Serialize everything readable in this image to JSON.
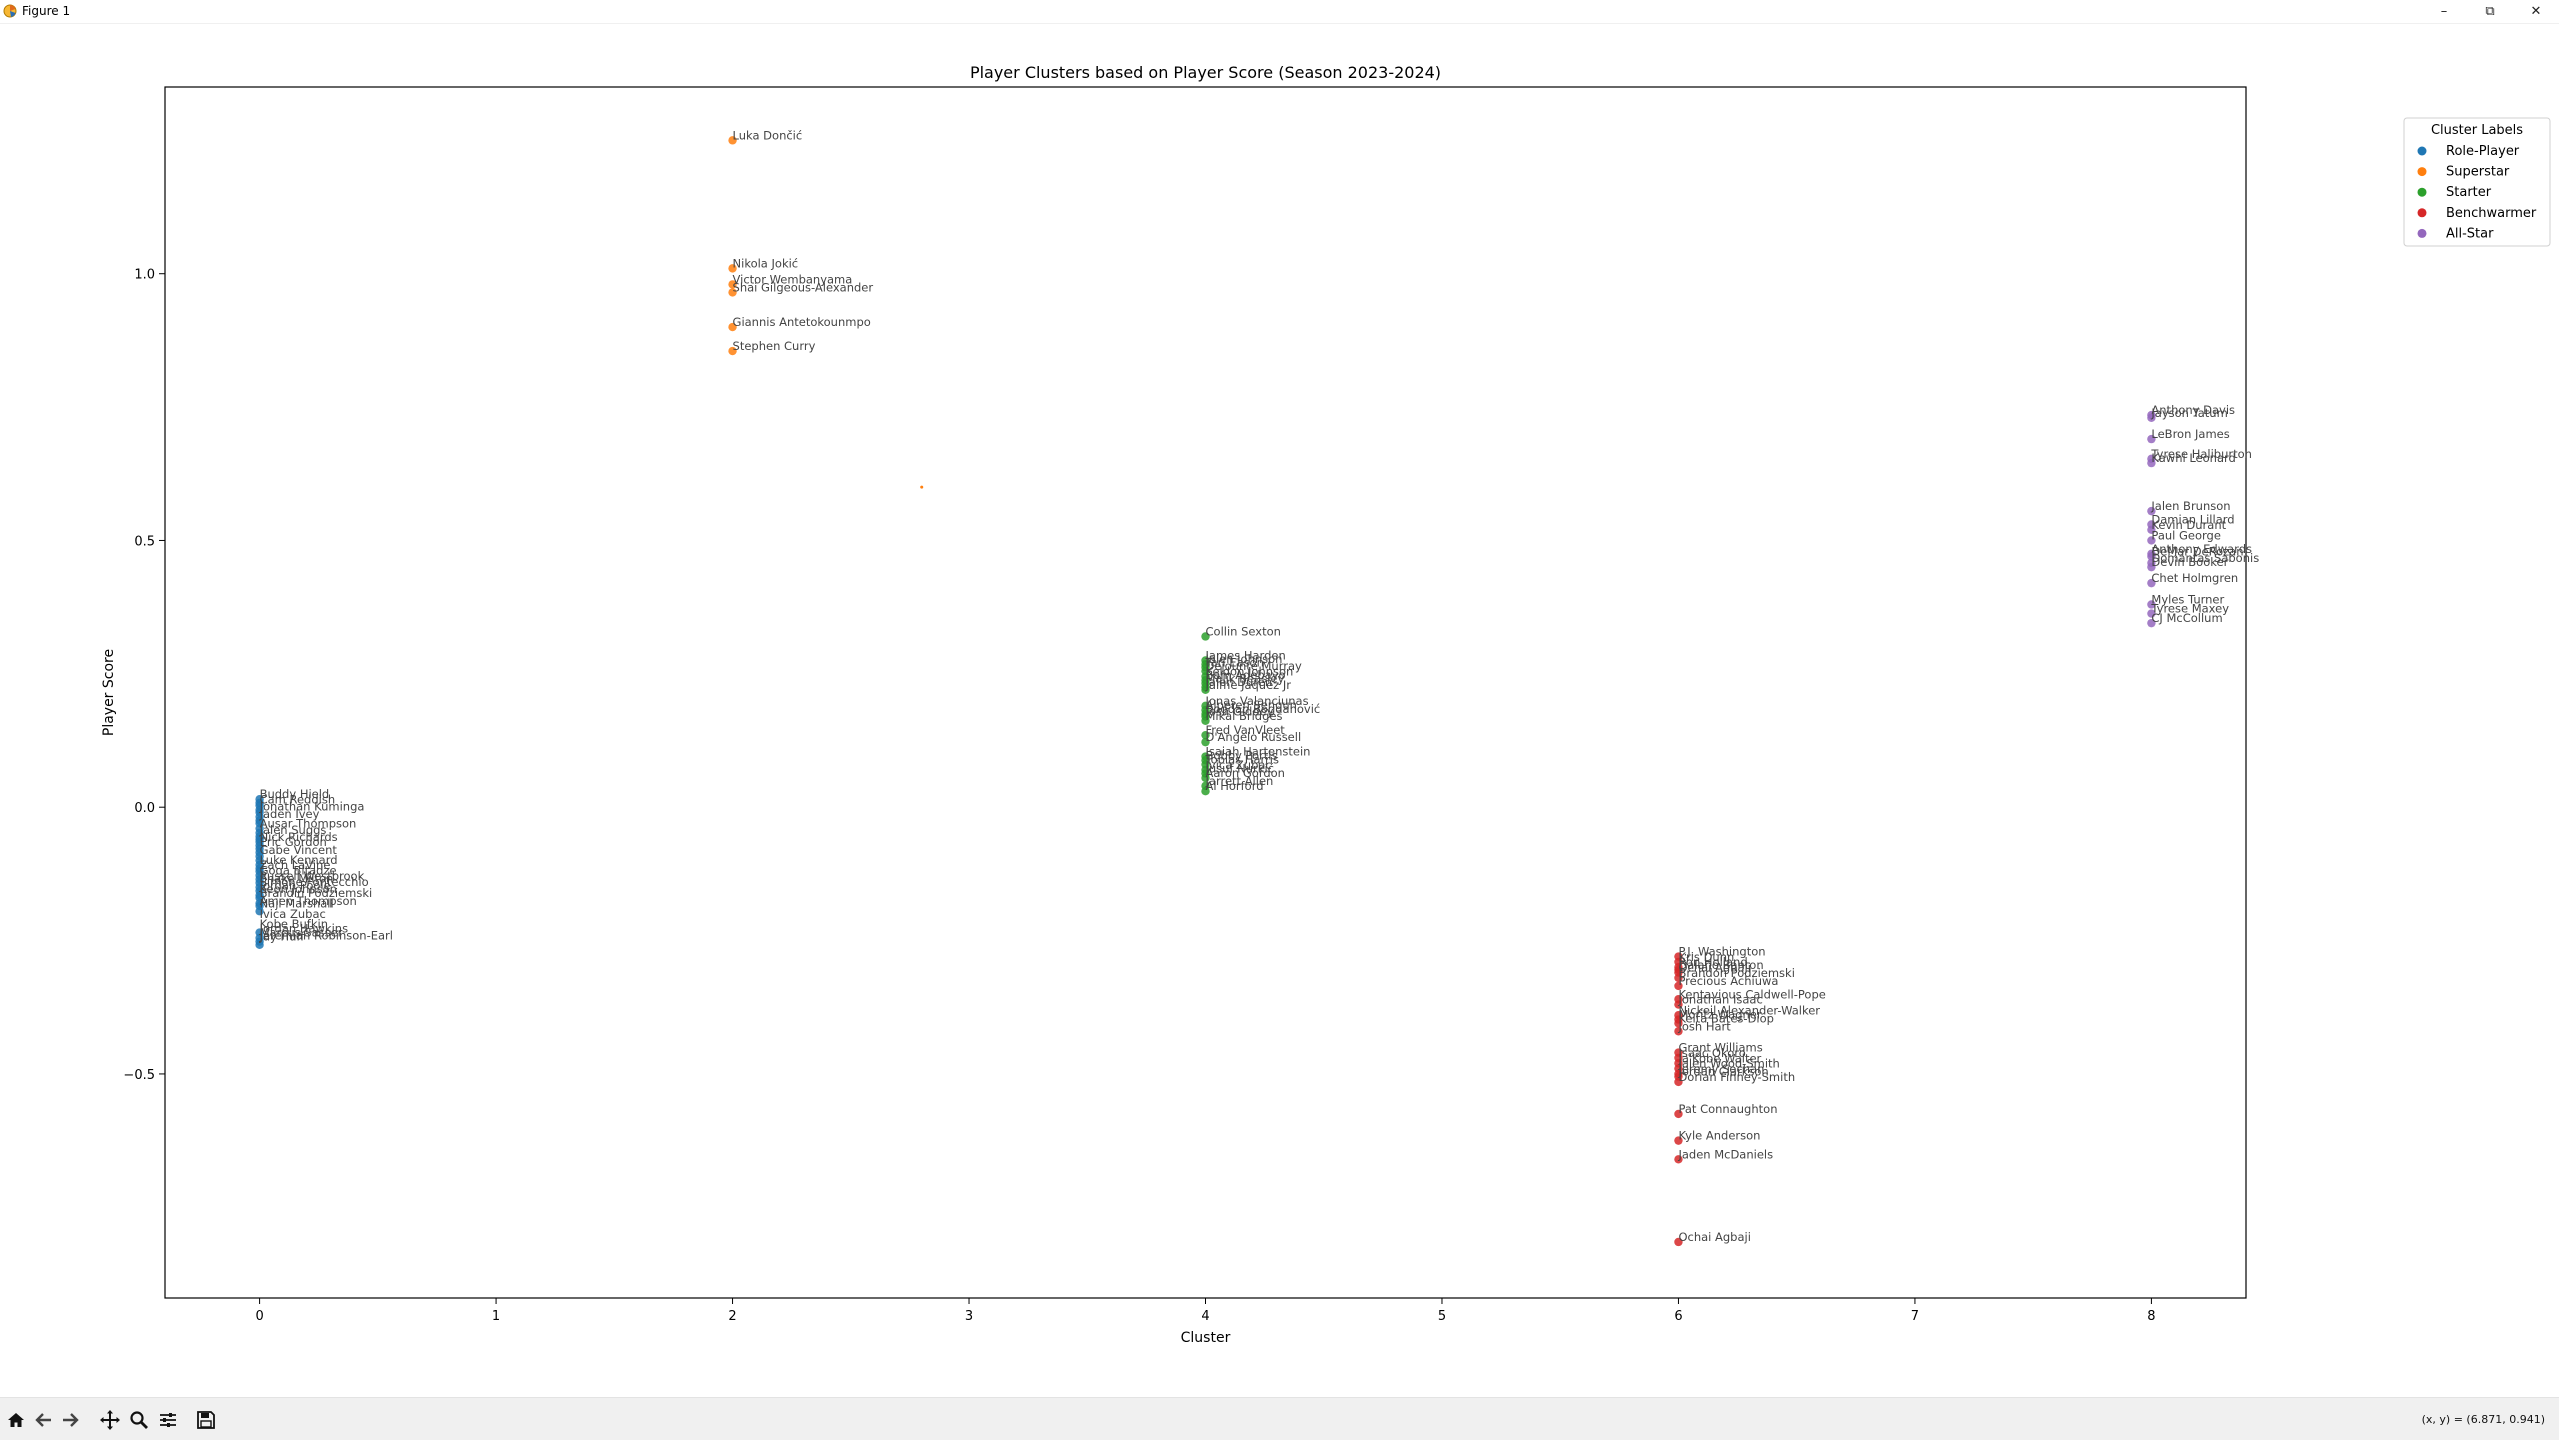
{
  "window": {
    "title": "Figure 1",
    "minimize_label": "–",
    "maximize_label": "⧉",
    "close_label": "✕"
  },
  "toolbar": {
    "coords": "(x, y) = (6.871, 0.941)",
    "icons": [
      "home-icon",
      "back-arrow-icon",
      "forward-arrow-icon",
      "pan-icon",
      "zoom-icon",
      "configure-subplots-icon",
      "save-icon"
    ]
  },
  "chart_data": {
    "type": "scatter",
    "title": "Player Clusters based on Player Score (Season 2023-2024)",
    "xlabel": "Cluster",
    "ylabel": "Player Score",
    "xlim": [
      -0.4,
      8.4
    ],
    "ylim": [
      -0.92,
      1.35
    ],
    "xticks": [
      0,
      1,
      2,
      3,
      4,
      5,
      6,
      7,
      8
    ],
    "yticks": [
      -0.5,
      0.0,
      0.5,
      1.0
    ],
    "ytick_labels": [
      "−0.5",
      "0.0",
      "0.5",
      "1.0"
    ],
    "grid": false,
    "legend": {
      "title": "Cluster Labels",
      "placement": "outside-top-right",
      "entries": [
        "Role-Player",
        "Superstar",
        "Starter",
        "Benchwarmer",
        "All-Star"
      ]
    },
    "colors": {
      "Role-Player": "#1f77b4",
      "Superstar": "#ff7f0e",
      "Starter": "#2ca02c",
      "Benchwarmer": "#d62728",
      "All-Star": "#9467bd"
    },
    "extra_marks": [
      {
        "x": 2.8,
        "y": 0.6,
        "color": "#ff7f0e"
      }
    ],
    "series": [
      {
        "name": "Superstar",
        "x": 2,
        "points": [
          {
            "label": "Luka Dončić",
            "y": 1.25
          },
          {
            "label": "Nikola Jokić",
            "y": 1.01
          },
          {
            "label": "Victor Wembanyama",
            "y": 0.98
          },
          {
            "label": "Shai Gilgeous-Alexander",
            "y": 0.965
          },
          {
            "label": "Giannis Antetokounmpo",
            "y": 0.9
          },
          {
            "label": "Stephen Curry",
            "y": 0.855
          }
        ]
      },
      {
        "name": "All-Star",
        "x": 8,
        "points": [
          {
            "label": "Anthony Davis",
            "y": 0.735
          },
          {
            "label": "Jayson Tatum",
            "y": 0.73
          },
          {
            "label": "LeBron James",
            "y": 0.69
          },
          {
            "label": "Tyrese Haliburton",
            "y": 0.653
          },
          {
            "label": "Kawhi Leonard",
            "y": 0.645
          },
          {
            "label": "Jalen Brunson",
            "y": 0.555
          },
          {
            "label": "Damian Lillard",
            "y": 0.53
          },
          {
            "label": "Kevin Durant",
            "y": 0.52
          },
          {
            "label": "Paul George",
            "y": 0.5
          },
          {
            "label": "Anthony Edwards",
            "y": 0.475
          },
          {
            "label": "DeMar DeRozan",
            "y": 0.47
          },
          {
            "label": "Domantas Sabonis",
            "y": 0.458
          },
          {
            "label": "Devin Booker",
            "y": 0.45
          },
          {
            "label": "Chet Holmgren",
            "y": 0.42
          },
          {
            "label": "Myles Turner",
            "y": 0.38
          },
          {
            "label": "Tyrese Maxey",
            "y": 0.363
          },
          {
            "label": "CJ McCollum",
            "y": 0.345
          }
        ]
      },
      {
        "name": "Starter",
        "x": 4,
        "points": [
          {
            "label": "Collin Sexton",
            "y": 0.32
          },
          {
            "label": "James Harden",
            "y": 0.275
          },
          {
            "label": "Jalen Johnson",
            "y": 0.268
          },
          {
            "label": "Tari Eason",
            "y": 0.262
          },
          {
            "label": "Dejounte Murray",
            "y": 0.255
          },
          {
            "label": "Keldon Johnson",
            "y": 0.245
          },
          {
            "label": "Bam Adebayo",
            "y": 0.238
          },
          {
            "label": "Malik Beasley",
            "y": 0.232
          },
          {
            "label": "Jalen Duren",
            "y": 0.225
          },
          {
            "label": "Jaime Jaquez Jr",
            "y": 0.22
          },
          {
            "label": "Jonas Valanciunas",
            "y": 0.19
          },
          {
            "label": "Alperen Sengun",
            "y": 0.182
          },
          {
            "label": "Bogdan Bogdanović",
            "y": 0.175
          },
          {
            "label": "Josh Giddey",
            "y": 0.17
          },
          {
            "label": "Mikal Bridges",
            "y": 0.162
          },
          {
            "label": "Fred VanVleet",
            "y": 0.135
          },
          {
            "label": "D'Angelo Russell",
            "y": 0.122
          },
          {
            "label": "Isaiah Hartenstein",
            "y": 0.095
          },
          {
            "label": "Bobby Portis",
            "y": 0.088
          },
          {
            "label": "Tobias Harris",
            "y": 0.08
          },
          {
            "label": "Ivica Zubac",
            "y": 0.07
          },
          {
            "label": "Jusuf Nurkić",
            "y": 0.063
          },
          {
            "label": "Aaron Gordon",
            "y": 0.055
          },
          {
            "label": "Jarrett Allen",
            "y": 0.04
          },
          {
            "label": "Al Horford",
            "y": 0.03
          }
        ]
      },
      {
        "name": "Role-Player",
        "x": 0,
        "points": [
          {
            "label": "Buddy Hield",
            "y": 0.015
          },
          {
            "label": "Dennis Schröder",
            "y": 0.008
          },
          {
            "label": "Coby White",
            "y": 0.003
          },
          {
            "label": "Jordan Clarkson",
            "y": -0.005
          },
          {
            "label": "Jonathan Kuminga",
            "y": -0.01
          },
          {
            "label": "Keegan Murray",
            "y": -0.018
          },
          {
            "label": "Trey Murphy",
            "y": -0.025
          },
          {
            "label": "Jabari Smith Jr",
            "y": -0.03
          },
          {
            "label": "Cam Thomas",
            "y": -0.04
          },
          {
            "label": "Herbert Jones",
            "y": -0.048
          },
          {
            "label": "Naz Reid",
            "y": -0.055
          },
          {
            "label": "Norman Powell",
            "y": -0.06
          },
          {
            "label": "Donte DiVincenzo",
            "y": -0.065
          },
          {
            "label": "Malik Monk",
            "y": -0.072
          },
          {
            "label": "Derrick White",
            "y": -0.078
          },
          {
            "label": "Max Strus",
            "y": -0.085
          },
          {
            "label": "Jalen Williams",
            "y": -0.092
          },
          {
            "label": "Nic Claxton",
            "y": -0.1
          },
          {
            "label": "Bennedict Mathurin",
            "y": -0.108
          },
          {
            "label": "Aaron Nesmith",
            "y": -0.115
          },
          {
            "label": "Alex Caruso",
            "y": -0.12
          },
          {
            "label": "Scottie Barnes",
            "y": -0.128
          },
          {
            "label": "Josh Okogie",
            "y": -0.135
          },
          {
            "label": "Luguentz Dort",
            "y": -0.142
          },
          {
            "label": "Kelly Olynyk",
            "y": -0.15
          },
          {
            "label": "Spencer Dinwiddie",
            "y": -0.157
          },
          {
            "label": "Zach Collins",
            "y": -0.165
          },
          {
            "label": "Jusuf Nurkic",
            "y": -0.17
          },
          {
            "label": "Ayo Dosunmu",
            "y": -0.18
          },
          {
            "label": "Jalen Smith",
            "y": -0.185
          },
          {
            "label": "Terry Rozier",
            "y": -0.195
          },
          {
            "label": "Vasilije Micić",
            "y": -0.235
          },
          {
            "label": "Andrew Wiggins",
            "y": -0.245
          },
          {
            "label": "Russell Westbrook",
            "y": -0.252
          },
          {
            "label": "Gary Trent Jr",
            "y": -0.258
          }
        ],
        "readable_labels": [
          {
            "label": "Buddy Hield",
            "y": 0.015
          },
          {
            "label": "Cam Reddish",
            "y": 0.005
          },
          {
            "label": "Jonathan Kuminga",
            "y": -0.008
          },
          {
            "label": "Jaden Ivey",
            "y": -0.022
          },
          {
            "label": "Ausar Thompson",
            "y": -0.04
          },
          {
            "label": "Jalen Suggs",
            "y": -0.052
          },
          {
            "label": "Nick Richards",
            "y": -0.065
          },
          {
            "label": "Eric Gordon",
            "y": -0.075
          },
          {
            "label": "Gabe Vincent",
            "y": -0.09
          },
          {
            "label": "Luke Kennard",
            "y": -0.108
          },
          {
            "label": "Zach LaVine",
            "y": -0.118
          },
          {
            "label": "Goga Bitadze",
            "y": -0.128
          },
          {
            "label": "Russell Westbrook",
            "y": -0.138
          },
          {
            "label": "Shake Milton",
            "y": -0.143
          },
          {
            "label": "Simone Fontecchio",
            "y": -0.15
          },
          {
            "label": "Jordan Poole",
            "y": -0.156
          },
          {
            "label": "Keon Johnson",
            "y": -0.163
          },
          {
            "label": "Brandin Podziemski",
            "y": -0.17
          },
          {
            "label": "Amen Thompson",
            "y": -0.185
          },
          {
            "label": "Naji Marshall",
            "y": -0.19
          },
          {
            "label": "Ivica Zubac",
            "y": -0.21
          },
          {
            "label": "Kobe Bufkin",
            "y": -0.228
          },
          {
            "label": "Jordan Hawkins",
            "y": -0.237
          },
          {
            "label": "Marcus Sasser",
            "y": -0.244
          },
          {
            "label": "Jeremiah Robinson-Earl",
            "y": -0.25
          },
          {
            "label": "Jay Huff",
            "y": -0.252
          }
        ]
      },
      {
        "name": "Benchwarmer",
        "x": 6,
        "points": [
          {
            "label": "P.J. Washington",
            "y": -0.28
          },
          {
            "label": "Kris Dunn",
            "y": -0.29
          },
          {
            "label": "Ron Holland",
            "y": -0.3
          },
          {
            "label": "Dalano Banton",
            "y": -0.305
          },
          {
            "label": "Ochai Agbaji",
            "y": -0.31
          },
          {
            "label": "Brandon Podziemski",
            "y": -0.32
          },
          {
            "label": "Precious Achiuwa",
            "y": -0.335
          },
          {
            "label": "Kentavious Caldwell-Pope",
            "y": -0.36
          },
          {
            "label": "Jonathan Isaac",
            "y": -0.37
          },
          {
            "label": "Nickeil Alexander-Walker",
            "y": -0.39
          },
          {
            "label": "Moritz Wagner",
            "y": -0.398
          },
          {
            "label": "Keita Bates-Diop",
            "y": -0.405
          },
          {
            "label": "Josh Hart",
            "y": -0.42
          },
          {
            "label": "Grant Williams",
            "y": -0.46
          },
          {
            "label": "Isaac Okoro",
            "y": -0.47
          },
          {
            "label": "Ja'Kobe Walter",
            "y": -0.48
          },
          {
            "label": "Jalen Wood-Smith",
            "y": -0.49
          },
          {
            "label": "Jeremy Sochan",
            "y": -0.5
          },
          {
            "label": "Jordan Clarkson",
            "y": -0.505
          },
          {
            "label": "Dorian Finney-Smith",
            "y": -0.515
          },
          {
            "label": "Pat Connaughton",
            "y": -0.575
          },
          {
            "label": "Kyle Anderson",
            "y": -0.625
          },
          {
            "label": "Jaden McDaniels",
            "y": -0.66
          },
          {
            "label": "Ochai Agbaji",
            "y": -0.815
          }
        ]
      }
    ]
  }
}
